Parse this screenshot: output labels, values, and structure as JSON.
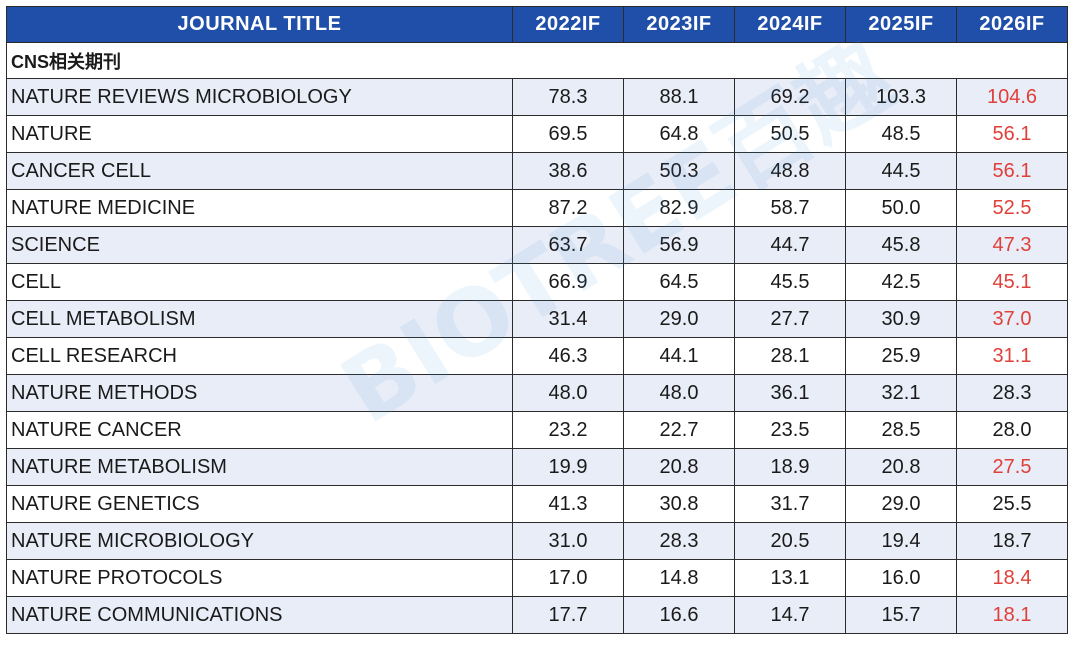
{
  "header": {
    "journal_title": "JOURNAL TITLE",
    "years": [
      "2022IF",
      "2023IF",
      "2024IF",
      "2025IF",
      "2026IF"
    ]
  },
  "section_title": "CNS相关期刊",
  "highlight_color": "#e0403a",
  "header_color": "#1f4fa8",
  "watermark": "BIOTREE百趣",
  "rows": [
    {
      "name": "NATURE REVIEWS MICROBIOLOGY",
      "values": [
        "78.3",
        "88.1",
        "69.2",
        "103.3",
        "104.6"
      ],
      "last_highlight": true
    },
    {
      "name": "NATURE",
      "values": [
        "69.5",
        "64.8",
        "50.5",
        "48.5",
        "56.1"
      ],
      "last_highlight": true
    },
    {
      "name": "CANCER CELL",
      "values": [
        "38.6",
        "50.3",
        "48.8",
        "44.5",
        "56.1"
      ],
      "last_highlight": true
    },
    {
      "name": "NATURE MEDICINE",
      "values": [
        "87.2",
        "82.9",
        "58.7",
        "50.0",
        "52.5"
      ],
      "last_highlight": true
    },
    {
      "name": "SCIENCE",
      "values": [
        "63.7",
        "56.9",
        "44.7",
        "45.8",
        "47.3"
      ],
      "last_highlight": true
    },
    {
      "name": "CELL",
      "values": [
        "66.9",
        "64.5",
        "45.5",
        "42.5",
        "45.1"
      ],
      "last_highlight": true
    },
    {
      "name": "CELL METABOLISM",
      "values": [
        "31.4",
        "29.0",
        "27.7",
        "30.9",
        "37.0"
      ],
      "last_highlight": true
    },
    {
      "name": "CELL RESEARCH",
      "values": [
        "46.3",
        "44.1",
        "28.1",
        "25.9",
        "31.1"
      ],
      "last_highlight": true
    },
    {
      "name": "NATURE METHODS",
      "values": [
        "48.0",
        "48.0",
        "36.1",
        "32.1",
        "28.3"
      ],
      "last_highlight": false
    },
    {
      "name": "NATURE CANCER",
      "values": [
        "23.2",
        "22.7",
        "23.5",
        "28.5",
        "28.0"
      ],
      "last_highlight": false
    },
    {
      "name": "NATURE METABOLISM",
      "values": [
        "19.9",
        "20.8",
        "18.9",
        "20.8",
        "27.5"
      ],
      "last_highlight": true
    },
    {
      "name": "NATURE GENETICS",
      "values": [
        "41.3",
        "30.8",
        "31.7",
        "29.0",
        "25.5"
      ],
      "last_highlight": false
    },
    {
      "name": "NATURE MICROBIOLOGY",
      "values": [
        "31.0",
        "28.3",
        "20.5",
        "19.4",
        "18.7"
      ],
      "last_highlight": false
    },
    {
      "name": "NATURE PROTOCOLS",
      "values": [
        "17.0",
        "14.8",
        "13.1",
        "16.0",
        "18.4"
      ],
      "last_highlight": true
    },
    {
      "name": "NATURE COMMUNICATIONS",
      "values": [
        "17.7",
        "16.6",
        "14.7",
        "15.7",
        "18.1"
      ],
      "last_highlight": true
    }
  ]
}
